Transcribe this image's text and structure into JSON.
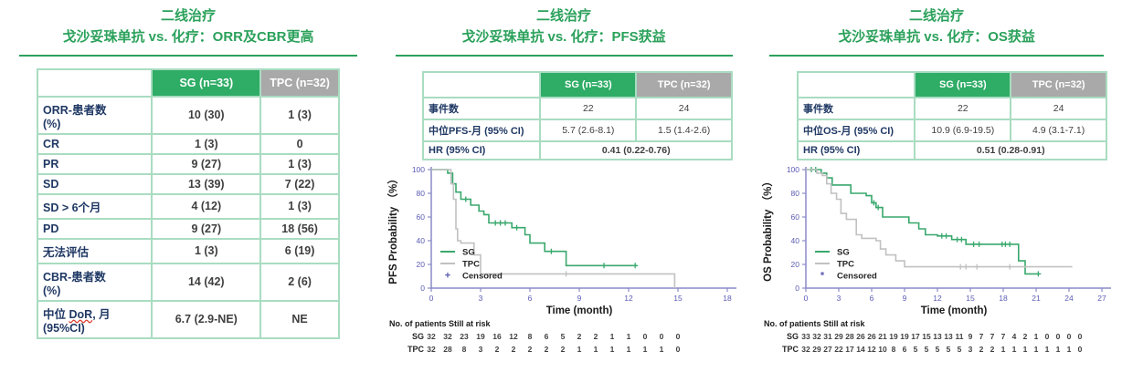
{
  "colors": {
    "title_green": "#2ba15b",
    "header_green": "#2fac66",
    "header_gray": "#a9a9a9",
    "border": "#a9dcc1",
    "label_text": "#1f3864",
    "value_text": "#3f3f3f",
    "axis": "#8a8ac8",
    "tick_text": "#5b5bb5",
    "km_green": "#39a86d",
    "km_gray": "#c1c1c1",
    "censor_legend": "#5b5bb5",
    "wavy_red": "#e03c31",
    "plot_text": "#1a1a1a"
  },
  "panels": {
    "orr": {
      "title_line1": "二线治疗",
      "title_line2": "戈沙妥珠单抗 vs. 化疗：ORR及CBR更高"
    },
    "pfs": {
      "title_line1": "二线治疗",
      "title_line2": "戈沙妥珠单抗 vs. 化疗：PFS获益"
    },
    "os": {
      "title_line1": "二线治疗",
      "title_line2": "戈沙妥珠单抗 vs. 化疗：OS获益"
    }
  },
  "tables": {
    "orr": {
      "headers": [
        "",
        "SG (n=33)",
        "TPC (n=32)"
      ],
      "rows": [
        {
          "label": "ORR-患者数\n (%)",
          "sg": "10 (30)",
          "tpc": "1 (3)"
        },
        {
          "label": "CR",
          "sg": "1 (3)",
          "tpc": "0"
        },
        {
          "label": "PR",
          "sg": "9 (27)",
          "tpc": "1 (3)"
        },
        {
          "label": "SD",
          "sg": "13 (39)",
          "tpc": "7 (22)"
        },
        {
          "label": "SD > 6个月",
          "sg": "4 (12)",
          "tpc": "1 (3)"
        },
        {
          "label": "PD",
          "sg": "9 (27)",
          "tpc": "18 (56)"
        },
        {
          "label": "无法评估",
          "sg": "1 (3)",
          "tpc": "6 (19)"
        },
        {
          "label": "CBR-患者数\n (%)",
          "sg": "14 (42)",
          "tpc": "2 (6)"
        },
        {
          "label": "中位 DoR, 月\n(95%CI)",
          "underline_word": "DoR",
          "sg": "6.7 (2.9-NE)",
          "tpc": "NE"
        }
      ]
    },
    "pfs": {
      "headers": [
        "",
        "SG (n=33)",
        "TPC (n=32)"
      ],
      "rows": [
        {
          "label": "事件数",
          "sg": "22",
          "tpc": "24"
        },
        {
          "label": "中位PFS-月 (95% CI)",
          "sg": "5.7 (2.6-8.1)",
          "tpc": "1.5 (1.4-2.6)"
        },
        {
          "label": "HR (95% CI)",
          "span": "0.41 (0.22-0.76)"
        }
      ]
    },
    "os": {
      "headers": [
        "",
        "SG (n=33)",
        "TPC (n=32)"
      ],
      "rows": [
        {
          "label": "事件数",
          "sg": "22",
          "tpc": "24"
        },
        {
          "label": "中位OS-月 (95% CI)",
          "sg": "10.9 (6.9-19.5)",
          "tpc": "4.9 (3.1-7.1)"
        },
        {
          "label": "HR (95% CI)",
          "span": "0.51 (0.28-0.91)"
        }
      ]
    }
  },
  "chart_data": [
    {
      "type": "line",
      "subtype": "kaplan-meier",
      "ylabel": "PFS Probability （%）",
      "xlabel": "Time  (month)",
      "xmax": 18,
      "xtick_step": 3,
      "ylim": [
        0,
        100
      ],
      "ytick_step": 20,
      "legend": [
        {
          "label": "SG",
          "color": "km_green"
        },
        {
          "label": "TPC",
          "color": "km_gray"
        },
        {
          "label": "Censored",
          "symbol": "+"
        }
      ],
      "series": [
        {
          "name": "SG",
          "color": "km_green",
          "points": [
            [
              0,
              100
            ],
            [
              1.0,
              100
            ],
            [
              1.0,
              97
            ],
            [
              1.3,
              97
            ],
            [
              1.3,
              88
            ],
            [
              1.5,
              88
            ],
            [
              1.5,
              81
            ],
            [
              1.8,
              81
            ],
            [
              1.8,
              75
            ],
            [
              2.4,
              75
            ],
            [
              2.4,
              70
            ],
            [
              2.9,
              70
            ],
            [
              2.9,
              65
            ],
            [
              3.2,
              65
            ],
            [
              3.2,
              62
            ],
            [
              3.5,
              62
            ],
            [
              3.5,
              55
            ],
            [
              4.9,
              55
            ],
            [
              4.9,
              51
            ],
            [
              5.7,
              51
            ],
            [
              5.7,
              45
            ],
            [
              6.0,
              45
            ],
            [
              6.0,
              38
            ],
            [
              6.9,
              38
            ],
            [
              6.9,
              31
            ],
            [
              8.2,
              31
            ],
            [
              8.2,
              19
            ],
            [
              12.5,
              19
            ]
          ],
          "censored": [
            [
              2.1,
              75
            ],
            [
              3.9,
              55
            ],
            [
              4.2,
              55
            ],
            [
              4.5,
              55
            ],
            [
              5.2,
              51
            ],
            [
              7.3,
              31
            ],
            [
              10.5,
              19
            ],
            [
              12.4,
              19
            ]
          ]
        },
        {
          "name": "TPC",
          "color": "km_gray",
          "points": [
            [
              0,
              100
            ],
            [
              1.2,
              100
            ],
            [
              1.2,
              88
            ],
            [
              1.35,
              88
            ],
            [
              1.35,
              75
            ],
            [
              1.5,
              75
            ],
            [
              1.5,
              50
            ],
            [
              1.6,
              50
            ],
            [
              1.6,
              40
            ],
            [
              1.8,
              40
            ],
            [
              1.8,
              38
            ],
            [
              2.6,
              38
            ],
            [
              2.6,
              28
            ],
            [
              3.0,
              28
            ],
            [
              3.0,
              12
            ],
            [
              14.8,
              12
            ],
            [
              14.8,
              0
            ]
          ],
          "censored": [
            [
              8.2,
              12
            ]
          ]
        }
      ],
      "risk_title": "No. of patients Still at risk",
      "at_risk": [
        {
          "name": "SG",
          "values": [
            32,
            32,
            23,
            19,
            16,
            12,
            8,
            6,
            5,
            2,
            2,
            1,
            1,
            0,
            0,
            0
          ]
        },
        {
          "name": "TPC",
          "values": [
            32,
            28,
            8,
            3,
            2,
            2,
            2,
            2,
            2,
            1,
            1,
            1,
            1,
            1,
            1,
            0
          ]
        }
      ]
    },
    {
      "type": "line",
      "subtype": "kaplan-meier",
      "ylabel": "OS Probability （%）",
      "xlabel": "Time  (month)",
      "xmax": 27,
      "xtick_step": 3,
      "ylim": [
        0,
        100
      ],
      "ytick_step": 20,
      "legend": [
        {
          "label": "SG",
          "color": "km_green"
        },
        {
          "label": "TPC",
          "color": "km_gray"
        },
        {
          "label": "Censored",
          "symbol": "*"
        }
      ],
      "series": [
        {
          "name": "SG",
          "color": "km_green",
          "points": [
            [
              0,
              100
            ],
            [
              1.4,
              100
            ],
            [
              1.4,
              97
            ],
            [
              1.9,
              97
            ],
            [
              1.9,
              93
            ],
            [
              2.4,
              93
            ],
            [
              2.4,
              87
            ],
            [
              4.1,
              87
            ],
            [
              4.1,
              80
            ],
            [
              5.5,
              80
            ],
            [
              5.5,
              78
            ],
            [
              6.0,
              78
            ],
            [
              6.0,
              72
            ],
            [
              6.4,
              72
            ],
            [
              6.4,
              68
            ],
            [
              7.0,
              68
            ],
            [
              7.0,
              60
            ],
            [
              9.4,
              60
            ],
            [
              9.4,
              55
            ],
            [
              10.3,
              55
            ],
            [
              10.3,
              50
            ],
            [
              10.9,
              50
            ],
            [
              10.9,
              45
            ],
            [
              12.0,
              45
            ],
            [
              12.0,
              44
            ],
            [
              13.3,
              44
            ],
            [
              13.3,
              41
            ],
            [
              14.6,
              41
            ],
            [
              14.6,
              37
            ],
            [
              19.4,
              37
            ],
            [
              19.4,
              23
            ],
            [
              20.0,
              23
            ],
            [
              20.0,
              12
            ],
            [
              21.3,
              12
            ]
          ],
          "censored": [
            [
              0.5,
              100
            ],
            [
              0.9,
              100
            ],
            [
              6.2,
              72
            ],
            [
              6.6,
              68
            ],
            [
              12.4,
              44
            ],
            [
              12.8,
              44
            ],
            [
              13.8,
              41
            ],
            [
              14.2,
              41
            ],
            [
              15.3,
              37
            ],
            [
              15.8,
              37
            ],
            [
              17.9,
              37
            ],
            [
              18.2,
              37
            ],
            [
              18.6,
              37
            ],
            [
              21.2,
              12
            ]
          ]
        },
        {
          "name": "TPC",
          "color": "km_gray",
          "points": [
            [
              0,
              100
            ],
            [
              1.0,
              100
            ],
            [
              1.0,
              97
            ],
            [
              1.5,
              97
            ],
            [
              1.5,
              95
            ],
            [
              1.9,
              95
            ],
            [
              1.9,
              88
            ],
            [
              2.3,
              88
            ],
            [
              2.3,
              80
            ],
            [
              2.8,
              80
            ],
            [
              2.8,
              75
            ],
            [
              3.2,
              75
            ],
            [
              3.2,
              63
            ],
            [
              3.7,
              63
            ],
            [
              3.7,
              58
            ],
            [
              4.6,
              58
            ],
            [
              4.6,
              45
            ],
            [
              5.1,
              45
            ],
            [
              5.1,
              42
            ],
            [
              6.4,
              42
            ],
            [
              6.4,
              40
            ],
            [
              6.8,
              40
            ],
            [
              6.8,
              33
            ],
            [
              7.3,
              33
            ],
            [
              7.3,
              28
            ],
            [
              8.2,
              28
            ],
            [
              8.2,
              23
            ],
            [
              9.0,
              23
            ],
            [
              9.0,
              18
            ],
            [
              24.3,
              18
            ]
          ],
          "censored": [
            [
              14.1,
              18
            ],
            [
              14.6,
              18
            ],
            [
              15.6,
              18
            ],
            [
              18.6,
              18
            ]
          ]
        }
      ],
      "risk_title": "No. of patients Still at risk",
      "at_risk": [
        {
          "name": "SG",
          "values": [
            33,
            32,
            31,
            29,
            28,
            26,
            26,
            21,
            19,
            19,
            17,
            15,
            13,
            13,
            11,
            9,
            7,
            7,
            7,
            4,
            2,
            1,
            0,
            0,
            0,
            0
          ]
        },
        {
          "name": "TPC",
          "values": [
            32,
            29,
            27,
            22,
            17,
            14,
            12,
            10,
            8,
            6,
            5,
            5,
            5,
            5,
            5,
            3,
            2,
            2,
            1,
            1,
            1,
            1,
            1,
            1,
            1,
            0
          ]
        }
      ]
    }
  ]
}
